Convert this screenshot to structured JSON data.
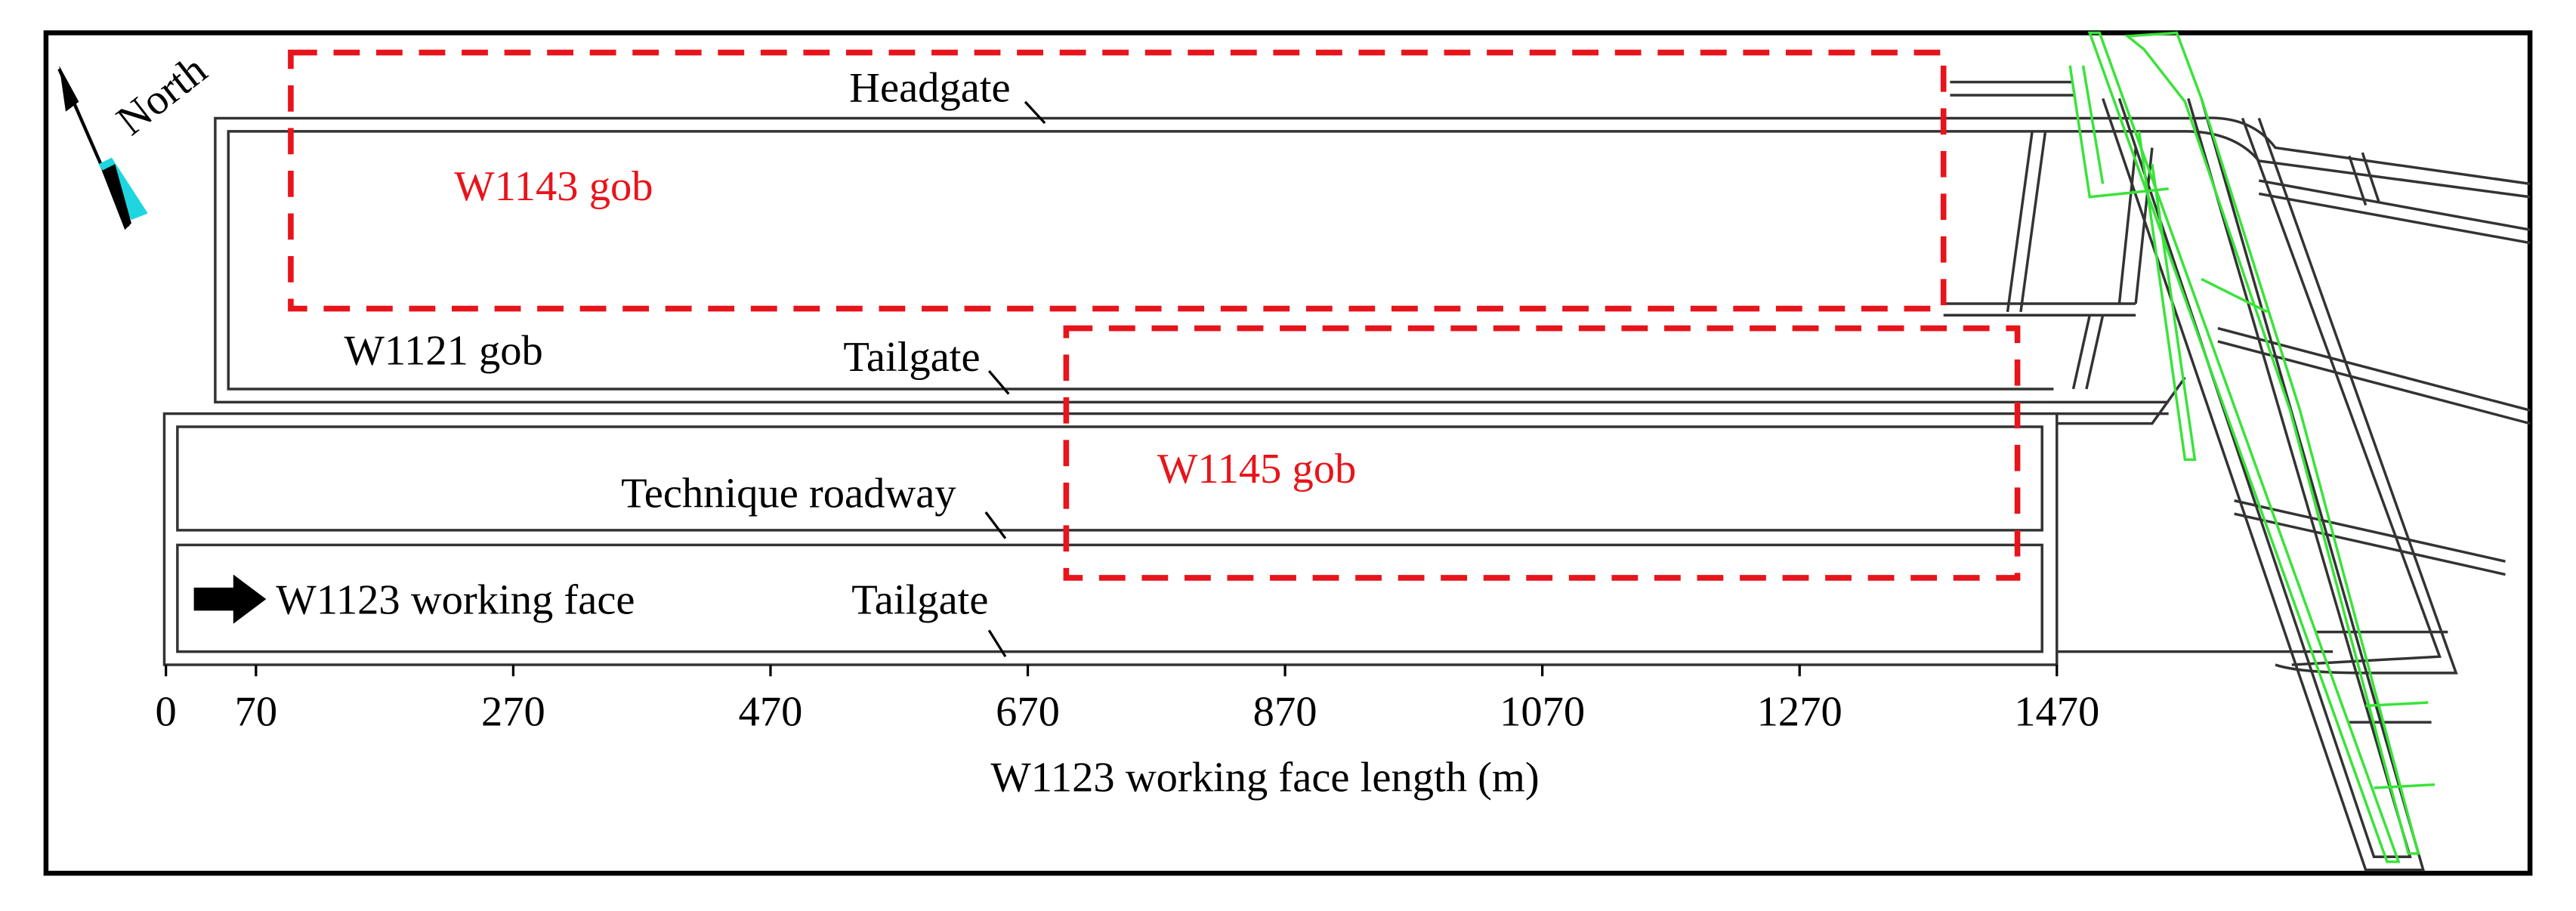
{
  "labels": {
    "north": "North",
    "headgate": "Headgate",
    "w1143_gob": "W1143 gob",
    "w1121_gob": "W1121 gob",
    "tailgate_upper": "Tailgate",
    "w1145_gob": "W1145 gob",
    "technique_roadway": "Technique roadway",
    "w1123_working_face": "W1123 working face",
    "tailgate_lower": "Tailgate"
  },
  "axis": {
    "label": "W1123 working face length (m)",
    "ticks": [
      0,
      70,
      270,
      470,
      670,
      870,
      1070,
      1270,
      1470
    ]
  }
}
